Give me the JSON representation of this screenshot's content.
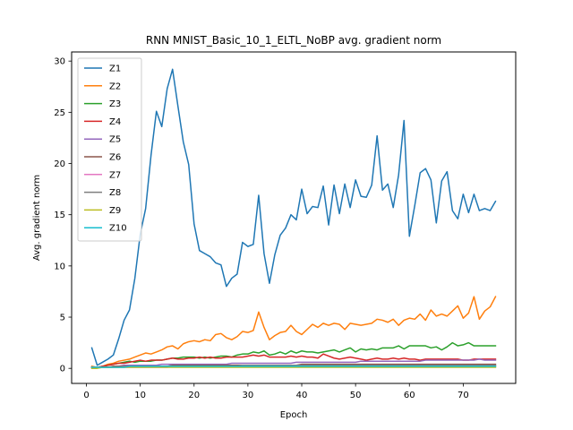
{
  "chart_data": {
    "type": "line",
    "title": "RNN MNIST_Basic_10_1_ELTL_NoBP avg. gradient norm",
    "xlabel": "Epoch",
    "ylabel": "Avg. gradient norm",
    "xlim": [
      -2.75,
      79.75
    ],
    "ylim": [
      -1.47,
      30.89
    ],
    "xticks": [
      0,
      10,
      20,
      30,
      40,
      50,
      60,
      70
    ],
    "yticks": [
      0,
      5,
      10,
      15,
      20,
      25,
      30
    ],
    "grid": false,
    "legend_position": "top-left",
    "x": [
      1,
      2,
      3,
      4,
      5,
      6,
      7,
      8,
      9,
      10,
      11,
      12,
      13,
      14,
      15,
      16,
      17,
      18,
      19,
      20,
      21,
      22,
      23,
      24,
      25,
      26,
      27,
      28,
      29,
      30,
      31,
      32,
      33,
      34,
      35,
      36,
      37,
      38,
      39,
      40,
      41,
      42,
      43,
      44,
      45,
      46,
      47,
      48,
      49,
      50,
      51,
      52,
      53,
      54,
      55,
      56,
      57,
      58,
      59,
      60,
      61,
      62,
      63,
      64,
      65,
      66,
      67,
      68,
      69,
      70,
      71,
      72,
      73,
      74,
      75,
      76
    ],
    "series": [
      {
        "name": "Z1",
        "color": "#1f77b4",
        "values": [
          2.0,
          0.3,
          0.6,
          0.9,
          1.3,
          2.9,
          4.7,
          5.7,
          8.8,
          13.1,
          15.6,
          20.8,
          25.1,
          23.6,
          27.3,
          29.2,
          25.6,
          22.1,
          19.9,
          14.1,
          11.5,
          11.2,
          10.9,
          10.3,
          10.1,
          8.0,
          8.8,
          9.2,
          12.3,
          11.9,
          12.1,
          16.9,
          11.2,
          8.3,
          11.1,
          13.0,
          13.7,
          15.0,
          14.5,
          17.5,
          15.1,
          15.8,
          15.7,
          17.8,
          14.0,
          17.9,
          15.1,
          18.0,
          15.7,
          18.4,
          16.8,
          16.7,
          17.9,
          22.7,
          17.4,
          18.0,
          15.7,
          18.9,
          24.2,
          12.9,
          15.9,
          19.1,
          19.5,
          18.4,
          14.2,
          18.3,
          19.2,
          15.4,
          14.6,
          17.0,
          15.2,
          17.0,
          15.4,
          15.6,
          15.4,
          16.3
        ]
      },
      {
        "name": "Z2",
        "color": "#ff7f0e",
        "values": [
          0.2,
          0.1,
          0.2,
          0.4,
          0.5,
          0.7,
          0.8,
          0.9,
          1.1,
          1.3,
          1.5,
          1.4,
          1.6,
          1.8,
          2.1,
          2.2,
          1.9,
          2.4,
          2.6,
          2.7,
          2.6,
          2.8,
          2.7,
          3.3,
          3.4,
          3.0,
          2.8,
          3.1,
          3.6,
          3.5,
          3.7,
          5.5,
          4.0,
          2.8,
          3.2,
          3.5,
          3.6,
          4.2,
          3.6,
          3.3,
          3.8,
          4.3,
          4.0,
          4.4,
          4.2,
          4.4,
          4.3,
          3.8,
          4.4,
          4.3,
          4.2,
          4.3,
          4.4,
          4.8,
          4.7,
          4.5,
          4.8,
          4.2,
          4.7,
          4.9,
          4.8,
          5.3,
          4.7,
          5.7,
          5.1,
          5.3,
          5.1,
          5.6,
          6.1,
          4.9,
          5.4,
          7.0,
          4.8,
          5.6,
          6.0,
          7.0
        ]
      },
      {
        "name": "Z3",
        "color": "#2ca02c",
        "values": [
          0.1,
          0.1,
          0.2,
          0.3,
          0.4,
          0.5,
          0.6,
          0.7,
          0.6,
          0.7,
          0.7,
          0.7,
          0.8,
          0.8,
          0.9,
          1.0,
          1.0,
          1.1,
          1.1,
          1.1,
          1.0,
          1.1,
          1.0,
          1.1,
          1.2,
          1.2,
          1.1,
          1.3,
          1.4,
          1.4,
          1.6,
          1.5,
          1.7,
          1.3,
          1.4,
          1.6,
          1.4,
          1.7,
          1.5,
          1.7,
          1.6,
          1.6,
          1.5,
          1.6,
          1.7,
          1.8,
          1.6,
          1.8,
          2.0,
          1.6,
          1.9,
          1.8,
          1.9,
          1.8,
          2.0,
          2.0,
          2.0,
          2.2,
          1.9,
          2.2,
          2.2,
          2.2,
          2.2,
          2.0,
          2.1,
          1.8,
          2.1,
          2.5,
          2.2,
          2.3,
          2.5,
          2.2,
          2.2,
          2.2,
          2.2,
          2.2
        ]
      },
      {
        "name": "Z4",
        "color": "#d62728",
        "values": [
          0.1,
          0.1,
          0.2,
          0.3,
          0.4,
          0.5,
          0.5,
          0.6,
          0.7,
          0.8,
          0.7,
          0.8,
          0.8,
          0.8,
          0.9,
          1.0,
          0.9,
          0.9,
          1.0,
          1.0,
          1.1,
          1.0,
          1.1,
          1.0,
          1.0,
          1.1,
          1.1,
          1.1,
          1.1,
          1.2,
          1.3,
          1.2,
          1.3,
          1.1,
          1.1,
          1.1,
          1.1,
          1.2,
          1.1,
          1.2,
          1.1,
          1.1,
          1.0,
          1.4,
          1.2,
          1.0,
          0.9,
          1.0,
          1.1,
          1.0,
          0.9,
          0.8,
          0.9,
          1.0,
          0.9,
          0.9,
          1.0,
          0.9,
          1.0,
          0.9,
          0.9,
          0.8,
          0.9,
          0.9,
          0.9,
          0.9,
          0.9,
          0.9,
          0.9,
          0.8,
          0.8,
          0.9,
          0.9,
          0.9,
          0.9,
          0.9
        ]
      },
      {
        "name": "Z5",
        "color": "#9467bd",
        "values": [
          0.1,
          0.1,
          0.1,
          0.1,
          0.2,
          0.2,
          0.3,
          0.3,
          0.3,
          0.3,
          0.3,
          0.3,
          0.3,
          0.4,
          0.4,
          0.4,
          0.4,
          0.4,
          0.4,
          0.4,
          0.4,
          0.4,
          0.4,
          0.4,
          0.4,
          0.4,
          0.5,
          0.5,
          0.5,
          0.5,
          0.5,
          0.5,
          0.5,
          0.5,
          0.5,
          0.5,
          0.5,
          0.5,
          0.6,
          0.6,
          0.6,
          0.6,
          0.6,
          0.6,
          0.6,
          0.6,
          0.6,
          0.6,
          0.6,
          0.6,
          0.7,
          0.7,
          0.7,
          0.7,
          0.7,
          0.7,
          0.7,
          0.7,
          0.7,
          0.7,
          0.7,
          0.7,
          0.8,
          0.8,
          0.8,
          0.8,
          0.8,
          0.8,
          0.8,
          0.8,
          0.8,
          0.8,
          0.9,
          0.8,
          0.8,
          0.8
        ]
      },
      {
        "name": "Z6",
        "color": "#8c564b",
        "values": [
          0.1,
          0.1,
          0.1,
          0.1,
          0.2,
          0.2,
          0.2,
          0.2,
          0.2,
          0.2,
          0.2,
          0.2,
          0.2,
          0.2,
          0.2,
          0.3,
          0.3,
          0.3,
          0.3,
          0.3,
          0.3,
          0.3,
          0.3,
          0.3,
          0.3,
          0.3,
          0.3,
          0.3,
          0.3,
          0.3,
          0.3,
          0.3,
          0.3,
          0.3,
          0.3,
          0.3,
          0.3,
          0.3,
          0.3,
          0.4,
          0.4,
          0.4,
          0.4,
          0.4,
          0.4,
          0.4,
          0.4,
          0.4,
          0.4,
          0.4,
          0.4,
          0.4,
          0.4,
          0.4,
          0.4,
          0.4,
          0.4,
          0.4,
          0.4,
          0.4,
          0.4,
          0.4,
          0.4,
          0.4,
          0.4,
          0.4,
          0.4,
          0.4,
          0.4,
          0.4,
          0.4,
          0.4,
          0.4,
          0.4,
          0.4,
          0.4
        ]
      },
      {
        "name": "Z7",
        "color": "#e377c2",
        "values": [
          0.1,
          0.1,
          0.1,
          0.1,
          0.1,
          0.1,
          0.1,
          0.1,
          0.1,
          0.1,
          0.1,
          0.1,
          0.1,
          0.1,
          0.1,
          0.2,
          0.2,
          0.2,
          0.2,
          0.2,
          0.2,
          0.2,
          0.2,
          0.2,
          0.2,
          0.2,
          0.2,
          0.2,
          0.2,
          0.2,
          0.2,
          0.2,
          0.2,
          0.2,
          0.2,
          0.2,
          0.2,
          0.2,
          0.2,
          0.2,
          0.2,
          0.2,
          0.2,
          0.2,
          0.2,
          0.2,
          0.2,
          0.2,
          0.2,
          0.2,
          0.2,
          0.2,
          0.2,
          0.2,
          0.2,
          0.2,
          0.2,
          0.2,
          0.2,
          0.2,
          0.2,
          0.2,
          0.2,
          0.2,
          0.2,
          0.2,
          0.2,
          0.2,
          0.2,
          0.2,
          0.2,
          0.2,
          0.2,
          0.2,
          0.2,
          0.2
        ]
      },
      {
        "name": "Z8",
        "color": "#7f7f7f",
        "values": [
          0.1,
          0.1,
          0.1,
          0.1,
          0.1,
          0.1,
          0.2,
          0.2,
          0.2,
          0.2,
          0.2,
          0.2,
          0.2,
          0.2,
          0.2,
          0.2,
          0.2,
          0.2,
          0.2,
          0.2,
          0.2,
          0.2,
          0.2,
          0.2,
          0.2,
          0.2,
          0.2,
          0.2,
          0.3,
          0.3,
          0.3,
          0.3,
          0.3,
          0.3,
          0.3,
          0.3,
          0.3,
          0.3,
          0.3,
          0.3,
          0.3,
          0.3,
          0.3,
          0.3,
          0.3,
          0.3,
          0.3,
          0.3,
          0.3,
          0.3,
          0.3,
          0.3,
          0.3,
          0.3,
          0.3,
          0.3,
          0.3,
          0.3,
          0.3,
          0.3,
          0.3,
          0.3,
          0.3,
          0.3,
          0.3,
          0.3,
          0.3,
          0.3,
          0.3,
          0.3,
          0.3,
          0.3,
          0.3,
          0.3,
          0.3,
          0.3
        ]
      },
      {
        "name": "Z9",
        "color": "#bcbd22",
        "values": [
          0.0,
          0.0,
          0.1,
          0.1,
          0.1,
          0.1,
          0.1,
          0.1,
          0.1,
          0.1,
          0.1,
          0.1,
          0.1,
          0.1,
          0.1,
          0.1,
          0.1,
          0.1,
          0.1,
          0.1,
          0.1,
          0.1,
          0.1,
          0.1,
          0.1,
          0.1,
          0.1,
          0.1,
          0.1,
          0.1,
          0.1,
          0.1,
          0.1,
          0.1,
          0.1,
          0.1,
          0.1,
          0.1,
          0.1,
          0.1,
          0.1,
          0.1,
          0.1,
          0.1,
          0.1,
          0.1,
          0.1,
          0.1,
          0.1,
          0.1,
          0.1,
          0.1,
          0.1,
          0.1,
          0.1,
          0.1,
          0.1,
          0.1,
          0.1,
          0.1,
          0.1,
          0.1,
          0.1,
          0.1,
          0.1,
          0.1,
          0.1,
          0.1,
          0.1,
          0.1,
          0.1,
          0.1,
          0.1,
          0.1,
          0.1,
          0.1
        ]
      },
      {
        "name": "Z10",
        "color": "#17becf",
        "values": [
          0.1,
          0.1,
          0.1,
          0.1,
          0.1,
          0.1,
          0.1,
          0.2,
          0.2,
          0.2,
          0.2,
          0.2,
          0.2,
          0.2,
          0.2,
          0.2,
          0.2,
          0.2,
          0.2,
          0.2,
          0.2,
          0.2,
          0.2,
          0.2,
          0.2,
          0.2,
          0.2,
          0.2,
          0.2,
          0.2,
          0.2,
          0.2,
          0.2,
          0.2,
          0.2,
          0.2,
          0.2,
          0.2,
          0.2,
          0.2,
          0.2,
          0.2,
          0.2,
          0.2,
          0.2,
          0.2,
          0.2,
          0.2,
          0.2,
          0.2,
          0.2,
          0.2,
          0.2,
          0.2,
          0.2,
          0.2,
          0.2,
          0.2,
          0.2,
          0.2,
          0.2,
          0.2,
          0.2,
          0.2,
          0.2,
          0.2,
          0.2,
          0.2,
          0.2,
          0.2,
          0.2,
          0.2,
          0.2,
          0.2,
          0.2,
          0.2
        ]
      }
    ]
  }
}
